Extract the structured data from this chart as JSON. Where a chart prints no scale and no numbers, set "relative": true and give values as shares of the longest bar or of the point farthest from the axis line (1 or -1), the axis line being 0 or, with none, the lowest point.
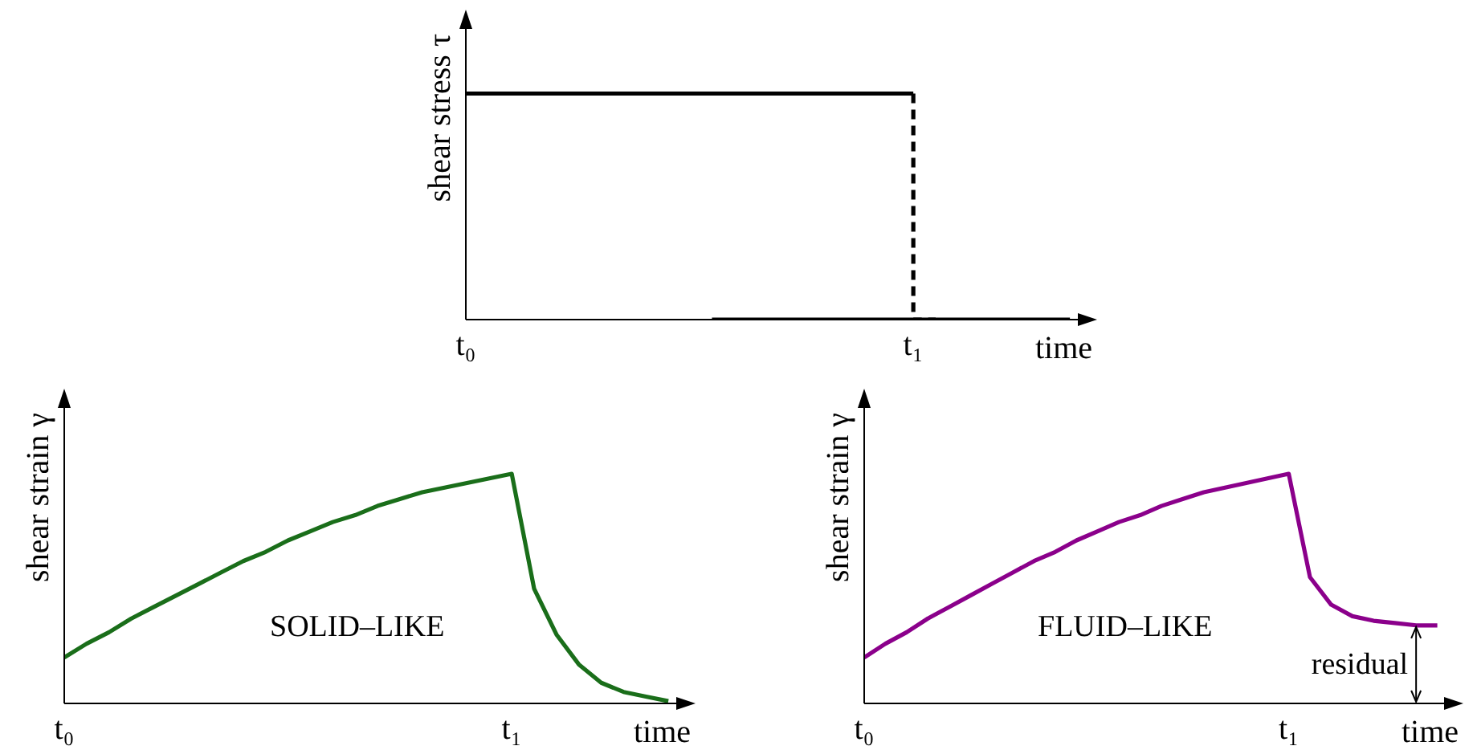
{
  "chart_data": [
    {
      "type": "line",
      "relative": true,
      "ylabel": "shear stress τ",
      "xlabel": "time",
      "categories": [
        "t₀",
        null,
        null,
        null,
        null,
        null,
        null,
        null,
        null,
        null,
        null,
        null,
        null,
        null,
        null,
        null,
        null,
        null,
        null,
        null,
        "t₁",
        null,
        null,
        null,
        null,
        null,
        null,
        null,
        null
      ],
      "grid": false,
      "marker": "none",
      "series": [
        {
          "values": [
            1,
            1,
            1,
            1,
            1,
            1,
            1,
            1,
            1,
            1,
            1,
            1,
            1,
            1,
            1,
            1,
            1,
            1,
            1,
            1,
            1,
            null,
            null,
            null,
            null,
            null,
            null,
            null,
            null
          ],
          "color": "#000000",
          "line_style": "solid"
        },
        {
          "type": "step",
          "values": [
            null,
            null,
            null,
            null,
            null,
            null,
            null,
            null,
            null,
            null,
            null,
            null,
            null,
            null,
            null,
            null,
            null,
            null,
            null,
            null,
            1,
            0,
            null,
            null,
            null,
            null,
            null,
            null,
            null
          ],
          "color": "#000000",
          "line_style": "dashed"
        },
        {
          "values": [
            null,
            null,
            null,
            null,
            null,
            null,
            null,
            null,
            null,
            null,
            null,
            0,
            0,
            0,
            0,
            0,
            0,
            0,
            0,
            0,
            0,
            0,
            0,
            0,
            0,
            0,
            0,
            0,
            null
          ],
          "color": "#000000",
          "line_style": "solid"
        }
      ]
    },
    {
      "type": "line",
      "relative": true,
      "ylabel": "shear strain γ",
      "xlabel": "time",
      "categories": [
        "t₀",
        null,
        null,
        null,
        null,
        null,
        null,
        null,
        null,
        null,
        null,
        null,
        null,
        null,
        null,
        null,
        null,
        null,
        null,
        null,
        "t₁",
        null,
        null,
        null,
        null,
        null,
        null,
        null,
        null
      ],
      "grid": false,
      "marker": "none",
      "annotations": [
        "SOLID–LIKE"
      ],
      "series": [
        {
          "values": [
            0.2,
            0.26,
            0.31,
            0.37,
            0.42,
            0.47,
            0.52,
            0.57,
            0.62,
            0.66,
            0.71,
            0.75,
            0.79,
            0.82,
            0.86,
            0.89,
            0.92,
            0.94,
            0.96,
            0.98,
            1,
            0.5,
            0.3,
            0.17,
            0.09,
            0.05,
            0.03,
            0.01,
            null
          ],
          "color": "#1a6e1a",
          "line_style": "solid"
        }
      ]
    },
    {
      "type": "line",
      "relative": true,
      "ylabel": "shear strain γ",
      "xlabel": "time",
      "categories": [
        "t₀",
        null,
        null,
        null,
        null,
        null,
        null,
        null,
        null,
        null,
        null,
        null,
        null,
        null,
        null,
        null,
        null,
        null,
        null,
        null,
        "t₁",
        null,
        null,
        null,
        null,
        null,
        null,
        null,
        null
      ],
      "grid": false,
      "marker": "none",
      "annotations": [
        "FLUID–LIKE",
        {
          "text": "residual",
          "y": 0.34
        }
      ],
      "series": [
        {
          "values": [
            0.2,
            0.26,
            0.31,
            0.37,
            0.42,
            0.47,
            0.52,
            0.57,
            0.62,
            0.66,
            0.71,
            0.75,
            0.79,
            0.82,
            0.86,
            0.89,
            0.92,
            0.94,
            0.96,
            0.98,
            1,
            0.55,
            0.43,
            0.38,
            0.36,
            0.35,
            0.34,
            0.34,
            null
          ],
          "color": "#8b008b",
          "line_style": "solid"
        }
      ]
    }
  ]
}
